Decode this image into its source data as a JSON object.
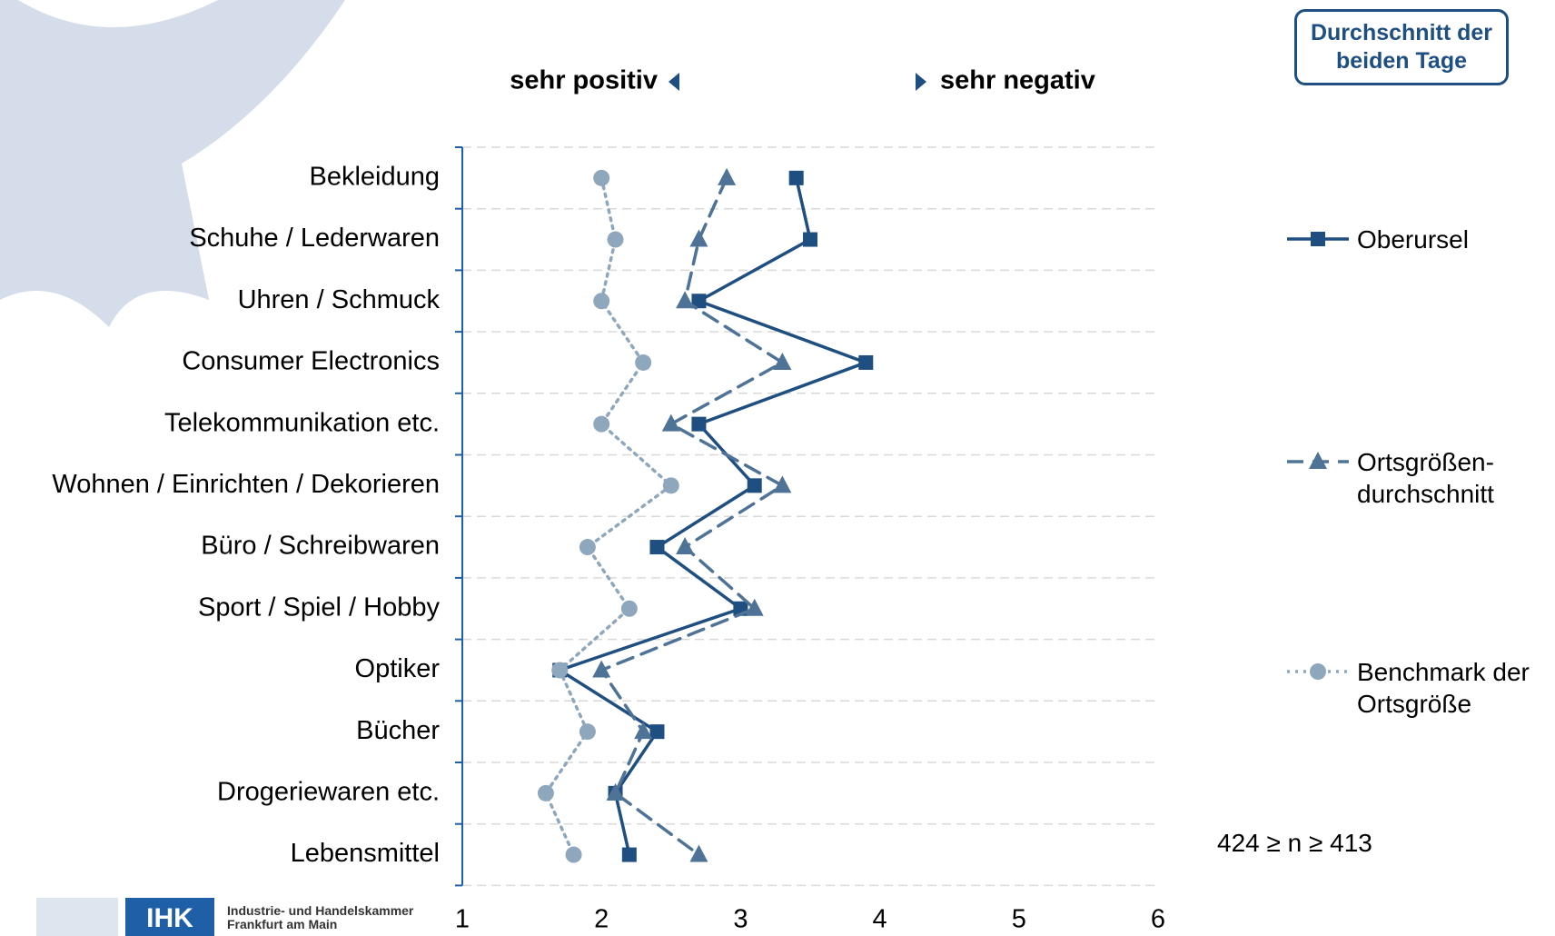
{
  "chart_data": {
    "type": "line",
    "orientation": "horizontal",
    "left_label": "sehr positiv",
    "right_label": "sehr negativ",
    "badge": "Durchschnitt der beiden Tage",
    "note": "424 ≥ n ≥ 413",
    "logo": {
      "mark": "IHK",
      "text": "Industrie- und Handelskammer Frankfurt am Main"
    },
    "categories": [
      "Bekleidung",
      "Schuhe / Lederwaren",
      "Uhren / Schmuck",
      "Consumer Electronics",
      "Telekommunikation etc.",
      "Wohnen / Einrichten / Dekorieren",
      "Büro / Schreibwaren",
      "Sport / Spiel / Hobby",
      "Optiker",
      "Bücher",
      "Drogeriewaren etc.",
      "Lebensmittel"
    ],
    "series": [
      {
        "name": "Oberursel",
        "color": "#1f4e80",
        "marker": "square",
        "line_style": "solid",
        "values": [
          3.4,
          3.5,
          2.7,
          3.9,
          2.7,
          3.1,
          2.4,
          3.0,
          1.7,
          2.4,
          2.1,
          2.2
        ]
      },
      {
        "name": "Ortsgrößen-durchschnitt",
        "color": "#4f7396",
        "marker": "triangle",
        "line_style": "dashed",
        "values": [
          2.9,
          2.7,
          2.6,
          3.3,
          2.5,
          3.3,
          2.6,
          3.1,
          2.0,
          2.3,
          2.1,
          2.7
        ]
      },
      {
        "name": "Benchmark der Ortsgröße",
        "color": "#8fa7bd",
        "marker": "circle",
        "line_style": "dotted",
        "values": [
          2.0,
          2.1,
          2.0,
          2.3,
          2.0,
          2.5,
          1.9,
          2.2,
          1.7,
          1.9,
          1.6,
          1.8
        ]
      }
    ],
    "xlim": [
      1,
      6
    ],
    "xticks": [
      1,
      2,
      3,
      4,
      5,
      6
    ],
    "grid": true
  }
}
